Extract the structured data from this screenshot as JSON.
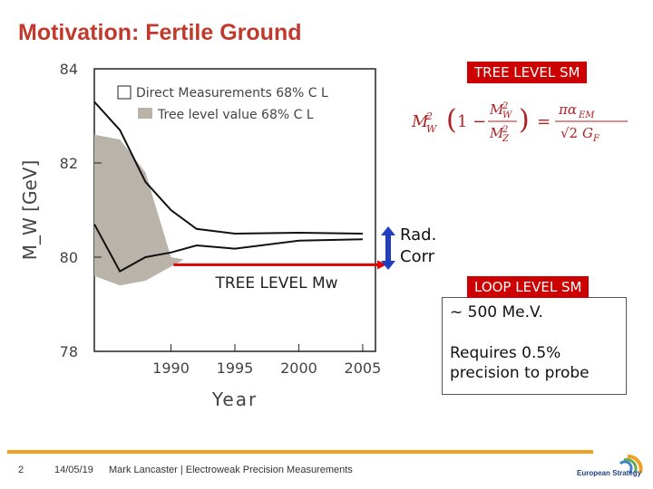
{
  "slide": {
    "title": "Motivation: Fertile Ground",
    "tree_level_sm": "TREE LEVEL SM",
    "loop_level_sm": "LOOP LEVEL SM",
    "rad_corr_line1": "Rad.",
    "rad_corr_line2": "Corr",
    "box_line1": "~ 500 Me.V.",
    "box_line2": "Requires 0.5% precision to probe",
    "tree_level_mw": "TREE LEVEL Mw"
  },
  "equation": {
    "lhs": "M",
    "text": "M_W^2 (1 - M_W^2/M_Z^2) = πα_EM / (√2 G_F)"
  },
  "footer": {
    "page": "2",
    "date": "14/05/19",
    "author": "Mark Lancaster | Electroweak Precision Measurements",
    "logo_text": "European Strategy"
  },
  "colors": {
    "accent": "#c0392b",
    "badge": "#cc0000",
    "arrow": "#e00000",
    "band": "#b9b3aa",
    "footer_line": "#f0a020"
  },
  "chart_data": {
    "type": "line",
    "xlabel": "Year",
    "ylabel": "M_W  [GeV]",
    "xlim": [
      1984,
      2006
    ],
    "ylim": [
      78,
      84
    ],
    "x_ticks": [
      "1990",
      "1995",
      "2000",
      "2005"
    ],
    "y_ticks": [
      "78",
      "80",
      "82",
      "84"
    ],
    "legend": [
      "Direct Measurements 68% C L",
      "Tree level value 68% C L"
    ],
    "series": [
      {
        "name": "Direct upper",
        "points": [
          [
            1984,
            83.3
          ],
          [
            1986,
            82.7
          ],
          [
            1988,
            81.6
          ],
          [
            1990,
            81.0
          ],
          [
            1992,
            80.6
          ],
          [
            1995,
            80.5
          ],
          [
            2000,
            80.52
          ],
          [
            2005,
            80.5
          ]
        ]
      },
      {
        "name": "Direct lower",
        "points": [
          [
            1984,
            80.7
          ],
          [
            1986,
            79.7
          ],
          [
            1988,
            80.0
          ],
          [
            1990,
            80.1
          ],
          [
            1992,
            80.25
          ],
          [
            1995,
            80.18
          ],
          [
            2000,
            80.35
          ],
          [
            2005,
            80.38
          ]
        ]
      }
    ],
    "band": {
      "name": "Tree level value 68% C L",
      "upper": [
        [
          1984,
          82.6
        ],
        [
          1986,
          82.5
        ],
        [
          1988,
          81.8
        ],
        [
          1990,
          80.0
        ],
        [
          1991,
          79.95
        ]
      ],
      "lower": [
        [
          1991,
          79.95
        ],
        [
          1990,
          79.8
        ],
        [
          1988,
          79.5
        ],
        [
          1986,
          79.4
        ],
        [
          1984,
          79.6
        ]
      ]
    }
  }
}
